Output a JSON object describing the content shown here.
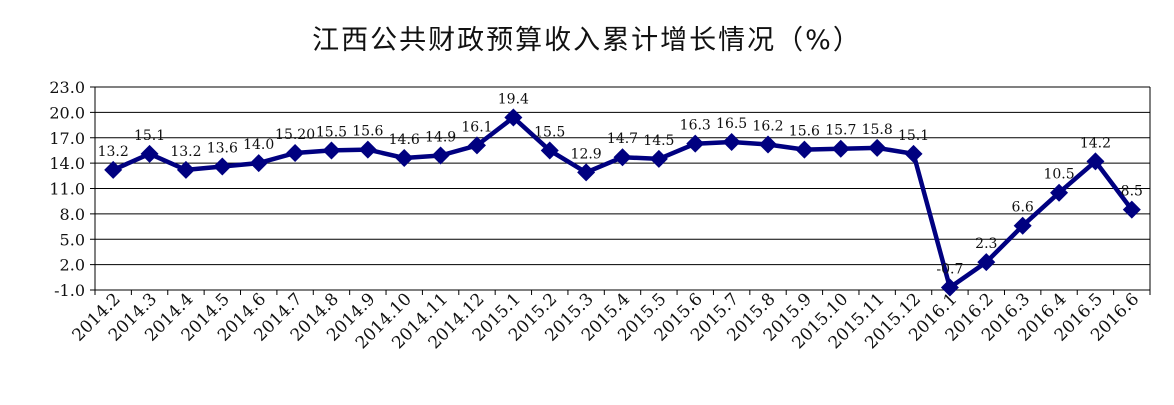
{
  "chart_data": {
    "type": "line",
    "title": "江西公共财政预算收入累计增长情况（%）",
    "xlabel": "",
    "ylabel": "",
    "ylim": [
      -1.0,
      23.0
    ],
    "yticks": [
      "23.0",
      "20.0",
      "17.0",
      "14.0",
      "11.0",
      "8.0",
      "5.0",
      "2.0",
      "-1.0"
    ],
    "grid": true,
    "legend": "none",
    "categories": [
      "2014.2",
      "2014.3",
      "2014.4",
      "2014.5",
      "2014.6",
      "2014.7",
      "2014.8",
      "2014.9",
      "2014.10",
      "2014.11",
      "2014.12",
      "2015.1",
      "2015.2",
      "2015.3",
      "2015.4",
      "2015.5",
      "2015.6",
      "2015.7",
      "2015.8",
      "2015.9",
      "2015.10",
      "2015.11",
      "2015.12",
      "2016.1",
      "2016.2",
      "2016.3",
      "2016.4",
      "2016.5",
      "2016.6"
    ],
    "series": [
      {
        "values": [
          13.2,
          15.1,
          13.2,
          13.6,
          14.0,
          15.2,
          15.5,
          15.6,
          14.6,
          14.9,
          16.1,
          19.4,
          15.5,
          12.9,
          14.7,
          14.5,
          16.3,
          16.5,
          16.2,
          15.6,
          15.7,
          15.8,
          15.1,
          -0.7,
          2.3,
          6.6,
          10.5,
          14.2,
          8.5
        ],
        "labels": [
          "13.2",
          "15.1",
          "13.2",
          "13.6",
          "14.0",
          "15.20",
          "15.5",
          "15.6",
          "14.6",
          "14.9",
          "16.1",
          "19.4",
          "15.5",
          "12.9",
          "14.7",
          "14.5",
          "16.3",
          "16.5",
          "16.2",
          "15.6",
          "15.7",
          "15.8",
          "15.1",
          "-0.7",
          "2.3",
          "6.6",
          "10.5",
          "14.2",
          "8.5"
        ],
        "color": "#000080"
      }
    ]
  }
}
